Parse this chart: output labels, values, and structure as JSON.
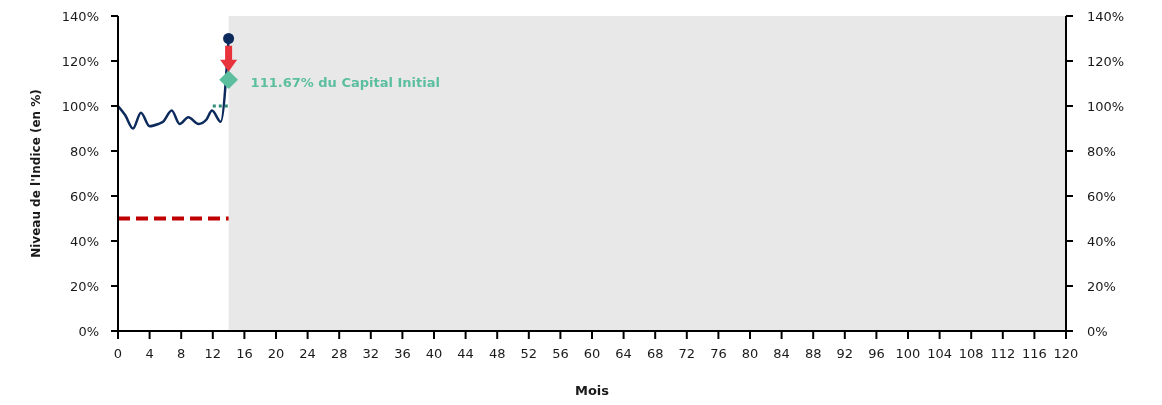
{
  "chart_data": {
    "type": "line",
    "xlabel": "Mois",
    "ylabel": "Niveau de l'Indice (en %)",
    "xlim": [
      0,
      120
    ],
    "xticks": [
      0,
      4,
      8,
      12,
      16,
      20,
      24,
      28,
      32,
      36,
      40,
      44,
      48,
      52,
      56,
      60,
      64,
      68,
      72,
      76,
      80,
      84,
      88,
      92,
      96,
      100,
      104,
      108,
      112,
      116,
      120
    ],
    "ylim": [
      0,
      140
    ],
    "yticks": [
      {
        "value": 0,
        "label": "0%"
      },
      {
        "value": 20,
        "label": "20%"
      },
      {
        "value": 40,
        "label": "40%"
      },
      {
        "value": 60,
        "label": "60%"
      },
      {
        "value": 80,
        "label": "80%"
      },
      {
        "value": 100,
        "label": "100%"
      },
      {
        "value": 120,
        "label": "120%"
      },
      {
        "value": 140,
        "label": "140%"
      }
    ],
    "y2lim": [
      0,
      140
    ],
    "y2ticks": [
      {
        "value": 0,
        "label": "0%"
      },
      {
        "value": 20,
        "label": "20%"
      },
      {
        "value": 40,
        "label": "40%"
      },
      {
        "value": 60,
        "label": "60%"
      },
      {
        "value": 80,
        "label": "80%"
      },
      {
        "value": 100,
        "label": "100%"
      },
      {
        "value": 120,
        "label": "120%"
      },
      {
        "value": 140,
        "label": "140%"
      }
    ],
    "series": [
      {
        "color": "#0d2a5c",
        "x": [
          0,
          0.9,
          1.9,
          2.9,
          4,
          5.1,
          5.7,
          6.8,
          7.8,
          8.9,
          10.2,
          11.2,
          11.9,
          13,
          14
        ],
        "values": [
          100,
          96,
          90,
          97,
          91,
          92,
          93,
          98,
          92,
          95,
          92,
          94,
          98,
          93,
          130
        ]
      },
      {
        "color": "#c00000",
        "x": [
          0,
          14
        ],
        "values": [
          50,
          50
        ],
        "line_style": "dashed"
      },
      {
        "color": "#2e8b77",
        "x": [
          12,
          14
        ],
        "values": [
          100,
          100
        ],
        "line_style": "dotted"
      },
      {
        "type": "scatter",
        "color": "#0d2a5c",
        "x": [
          14
        ],
        "values": [
          130
        ],
        "marker": "circle"
      },
      {
        "type": "scatter",
        "color": "#5bbf9f",
        "x": [
          14
        ],
        "values": [
          111.67
        ],
        "marker": "diamond"
      }
    ],
    "bands": [
      {
        "axis": "x",
        "from": 14,
        "to": 120,
        "color": "#e8e8e8"
      }
    ],
    "annotations": [
      {
        "text": "111.67% du Capital Initial",
        "x": 14,
        "y": 111.67
      }
    ]
  }
}
